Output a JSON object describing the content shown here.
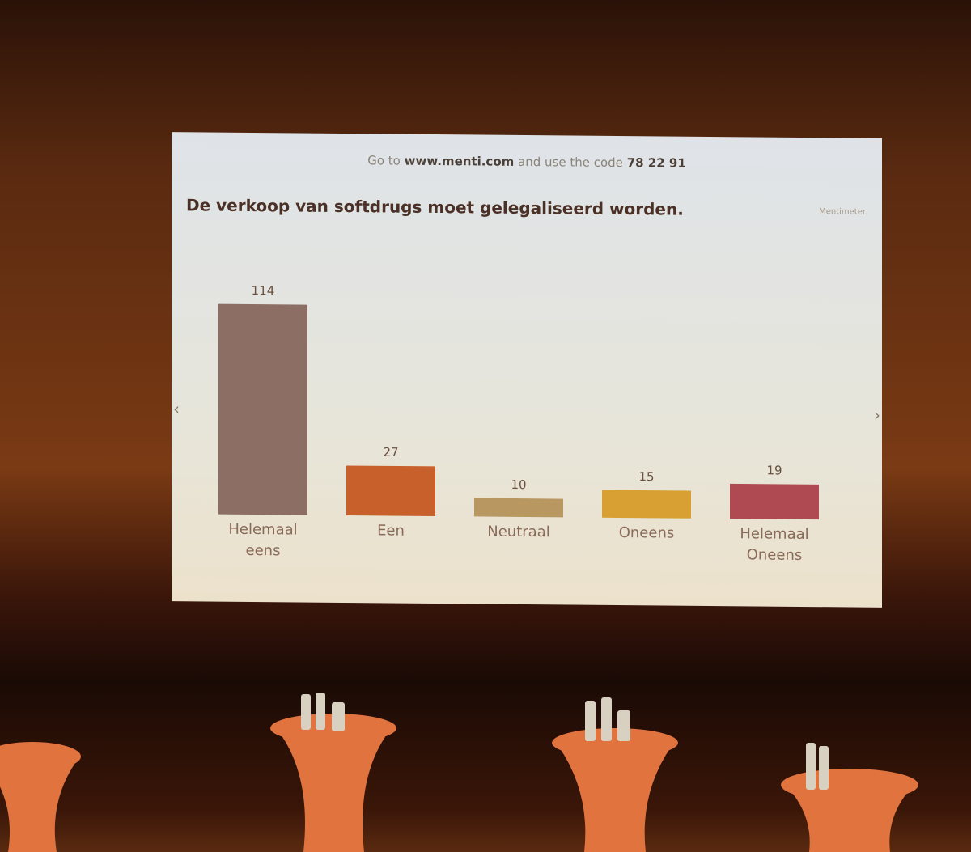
{
  "instruction": {
    "prefix": "Go to",
    "url": "www.menti.com",
    "middle": "and use the code",
    "code": "78 22 91"
  },
  "brand": "Mentimeter",
  "chart_data": {
    "type": "bar",
    "title": "De verkoop van softdrugs moet gelegaliseerd worden.",
    "categories": [
      "Helemaal eens",
      "Een",
      "Neutraal",
      "Oneens",
      "Helemaal Oneens"
    ],
    "values": [
      114,
      27,
      10,
      15,
      19
    ],
    "colors": [
      "#8c6e64",
      "#c8602c",
      "#b89860",
      "#d8a032",
      "#b04a52"
    ]
  }
}
